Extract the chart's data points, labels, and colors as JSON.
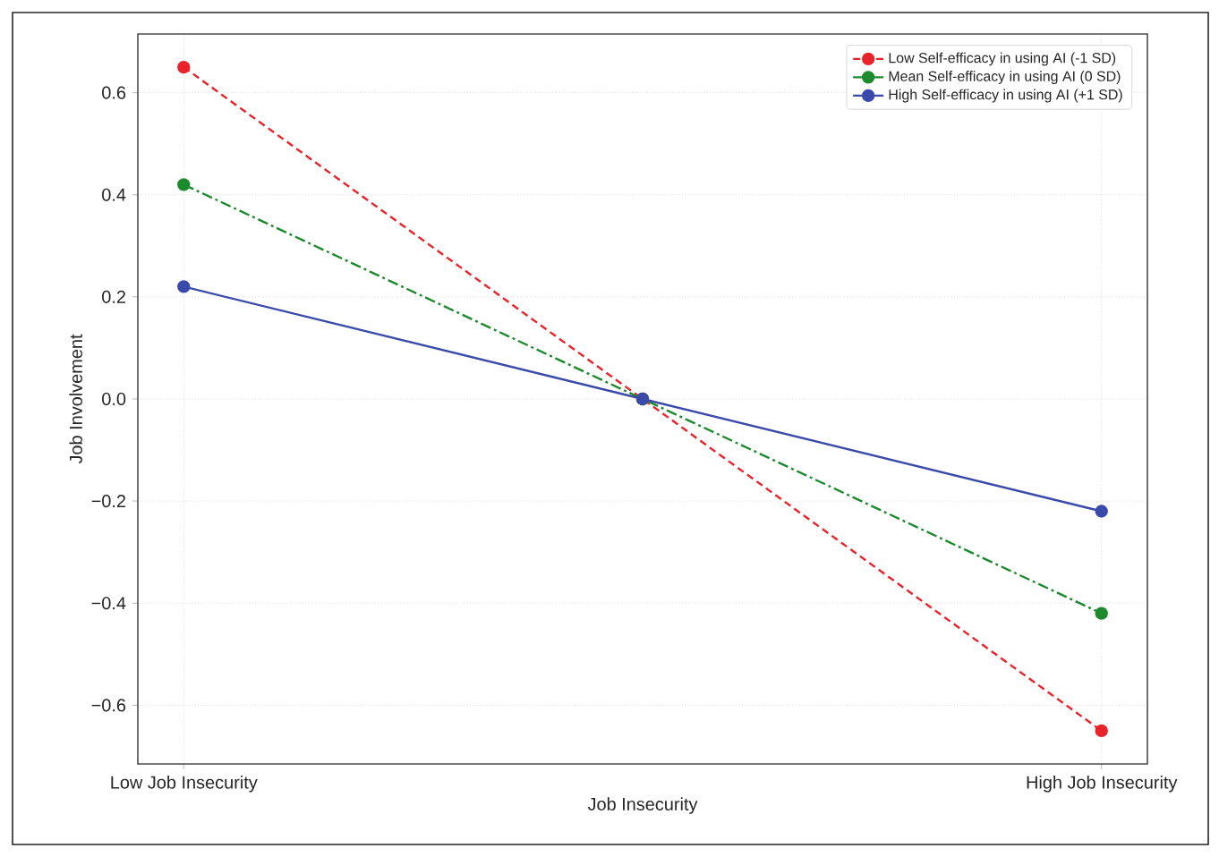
{
  "chart_data": {
    "type": "line",
    "xlabel": "Job Insecurity",
    "ylabel": "Job Involvement",
    "categories": [
      "Low Job Insecurity",
      null,
      "High Job Insecurity"
    ],
    "series": [
      {
        "name": "Low Self-efficacy in using AI (-1 SD)",
        "color": "#e8242a",
        "line_style": "dashed",
        "values": [
          0.65,
          0,
          -0.65
        ]
      },
      {
        "name": "Mean Self-efficacy in using AI (0 SD)",
        "color": "#1e8a2e",
        "line_style": "dashdot",
        "values": [
          0.42,
          0,
          -0.42
        ]
      },
      {
        "name": "High Self-efficacy in using AI (+1 SD)",
        "color": "#3a4aaa",
        "line_style": "solid",
        "values": [
          0.22,
          0,
          -0.22
        ]
      }
    ],
    "ylim": [
      -0.715,
      0.715
    ],
    "yticks": [
      {
        "value": -0.6,
        "label": "−0.6"
      },
      {
        "value": -0.4,
        "label": "−0.4"
      },
      {
        "value": -0.2,
        "label": "−0.2"
      },
      {
        "value": 0,
        "label": "0.0"
      },
      0.2,
      0.4,
      0.6
    ],
    "grid": true,
    "legend": "top right",
    "marker": "circle"
  }
}
